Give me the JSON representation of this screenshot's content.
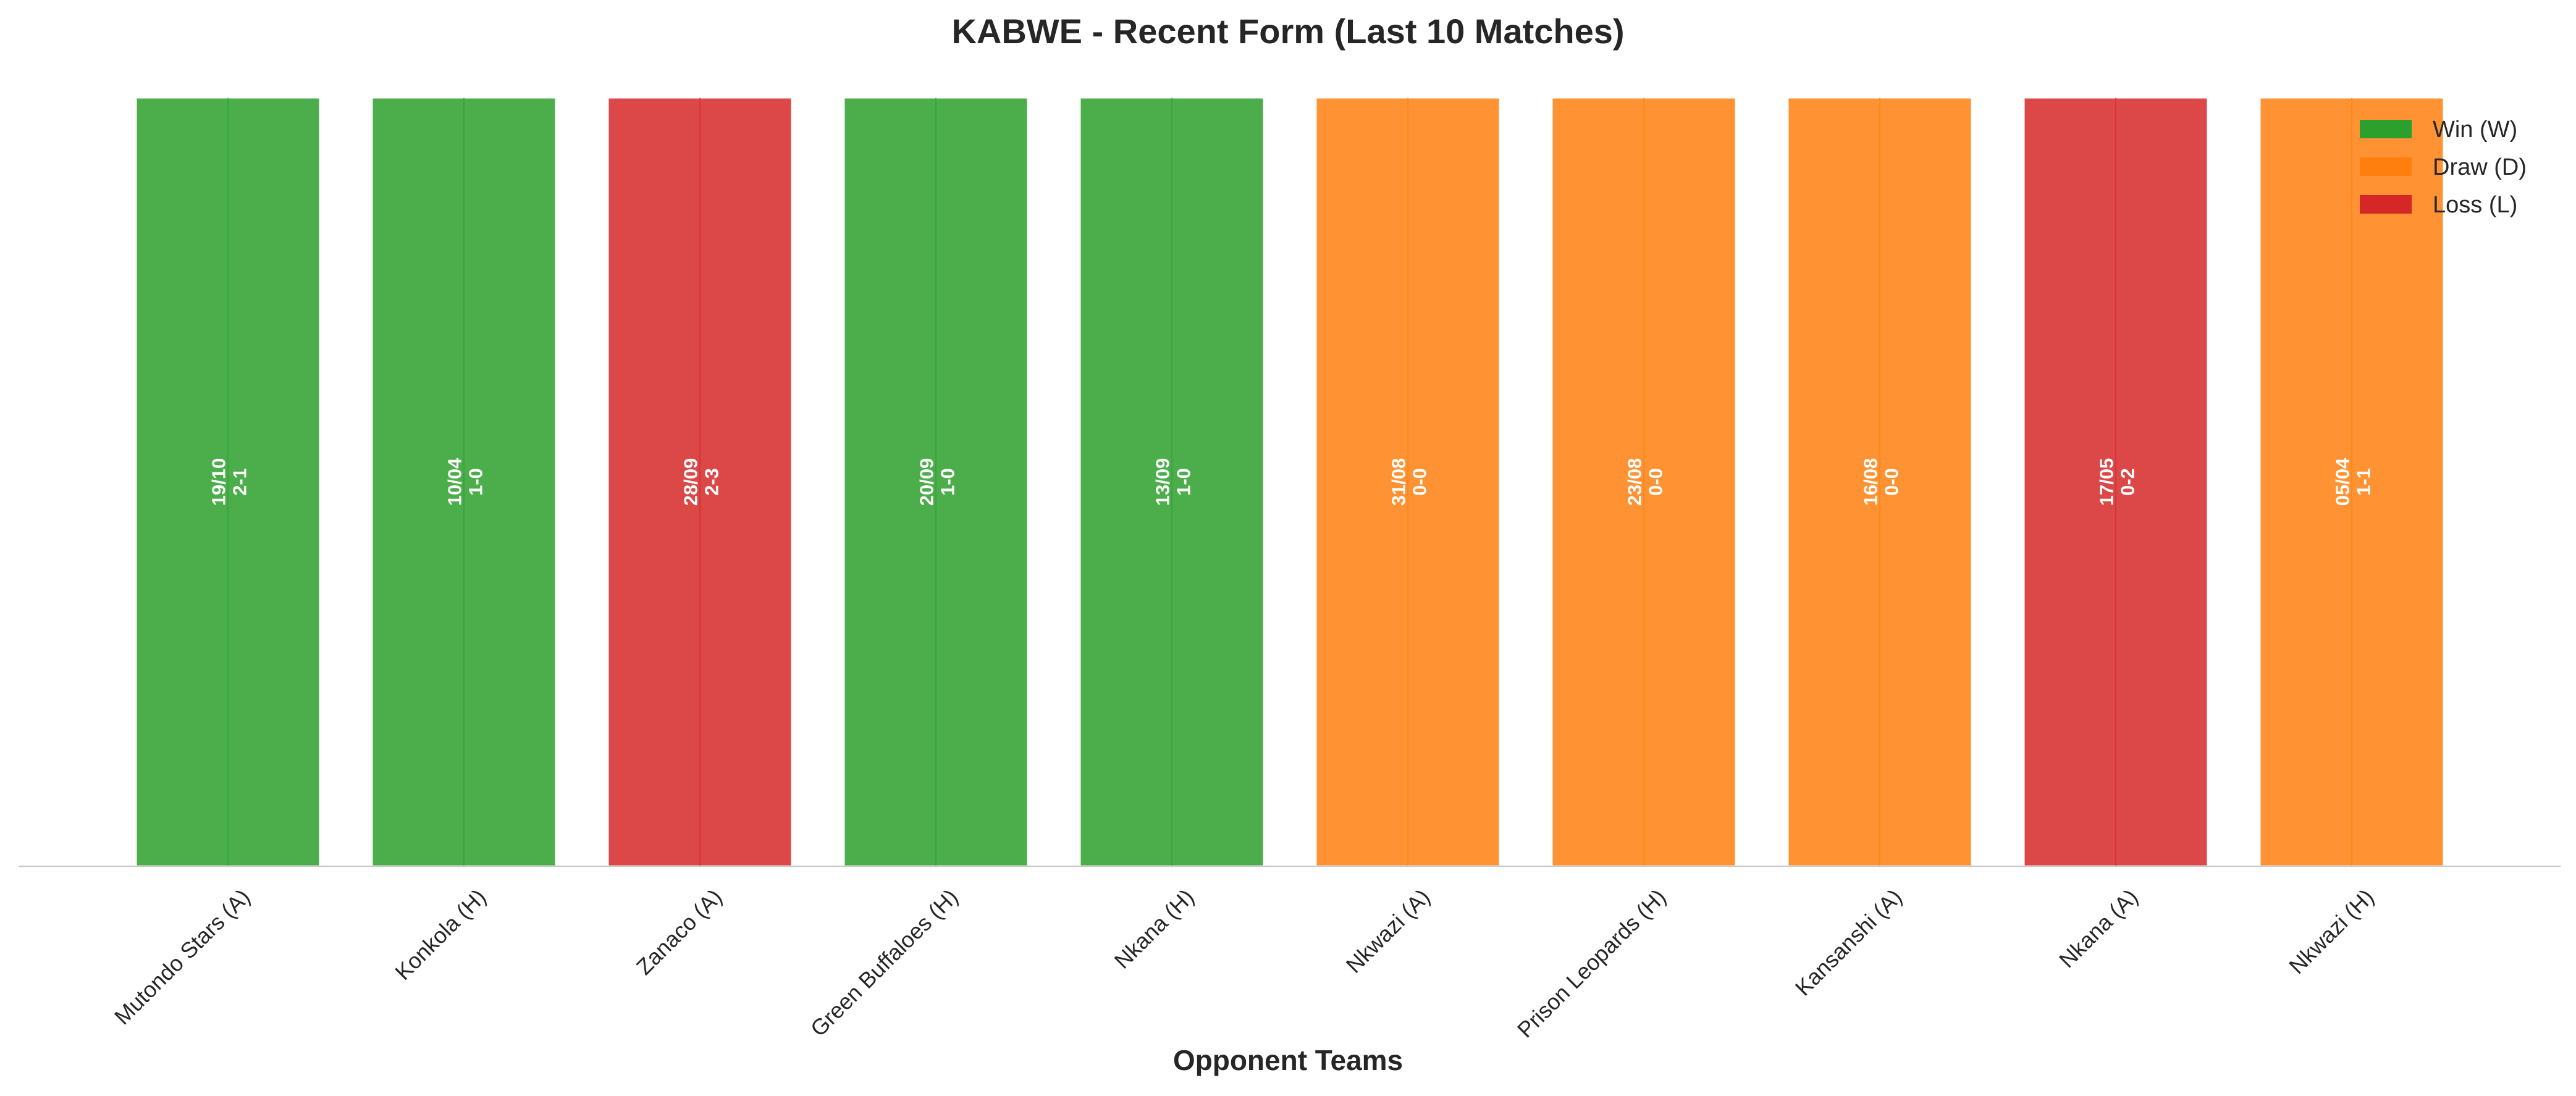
{
  "chart_data": {
    "type": "bar",
    "title": "KABWE - Recent Form (Last 10 Matches)",
    "xlabel": "Opponent Teams",
    "ylabel": "",
    "ylim": [
      0,
      1
    ],
    "grid": false,
    "categories": [
      "Mutondo Stars (A)",
      "Konkola (H)",
      "Zanaco (A)",
      "Green Buffaloes (H)",
      "Nkana (H)",
      "Nkwazi (A)",
      "Prison Leopards (H)",
      "Kansanshi (A)",
      "Nkana (A)",
      "Nkwazi (H)"
    ],
    "values": [
      1,
      1,
      1,
      1,
      1,
      1,
      1,
      1,
      1,
      1
    ],
    "results": [
      "W",
      "W",
      "L",
      "W",
      "W",
      "D",
      "D",
      "D",
      "L",
      "D"
    ],
    "dates": [
      "19/10",
      "10/04",
      "28/09",
      "20/09",
      "13/09",
      "31/08",
      "23/08",
      "16/08",
      "17/05",
      "05/04"
    ],
    "scores": [
      "2-1",
      "1-0",
      "2-3",
      "1-0",
      "1-0",
      "0-0",
      "0-0",
      "0-0",
      "0-2",
      "1-1"
    ],
    "legend": {
      "position": "top-right",
      "entries": [
        {
          "key": "W",
          "label": "Win (W)",
          "color": "#2ca02c"
        },
        {
          "key": "D",
          "label": "Draw (D)",
          "color": "#ff7f0e"
        },
        {
          "key": "L",
          "label": "Loss (L)",
          "color": "#d62728"
        }
      ]
    }
  }
}
